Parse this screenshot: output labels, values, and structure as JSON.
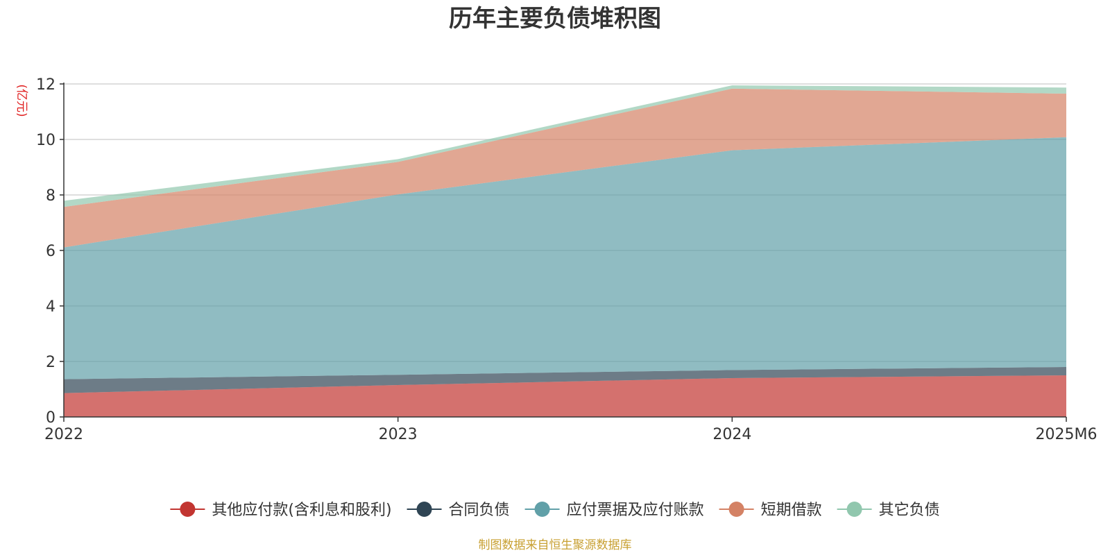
{
  "chart_data": {
    "type": "area",
    "stacked": true,
    "title": "历年主要负债堆积图",
    "unit_label": "(亿元)",
    "source_note": "制图数据来自恒生聚源数据库",
    "categories": [
      "2022",
      "2023",
      "2024",
      "2025M6"
    ],
    "ylim": [
      0,
      12
    ],
    "yticks": [
      0,
      2,
      4,
      6,
      8,
      10,
      12
    ],
    "grid": true,
    "legend_position": "bottom",
    "series": [
      {
        "name": "其他应付款(含利息和股利)",
        "color": "#c23531",
        "values": [
          0.86,
          1.15,
          1.4,
          1.5
        ]
      },
      {
        "name": "合同负债",
        "color": "#2f4554",
        "values": [
          0.5,
          0.37,
          0.29,
          0.3
        ]
      },
      {
        "name": "应付票据及应付账款",
        "color": "#61a0a8",
        "values": [
          4.75,
          6.5,
          7.92,
          8.28
        ]
      },
      {
        "name": "短期借款",
        "color": "#d48265",
        "values": [
          1.46,
          1.17,
          2.22,
          1.57
        ]
      },
      {
        "name": "其它负债",
        "color": "#91c7ae",
        "values": [
          0.22,
          0.1,
          0.12,
          0.22
        ]
      }
    ]
  }
}
